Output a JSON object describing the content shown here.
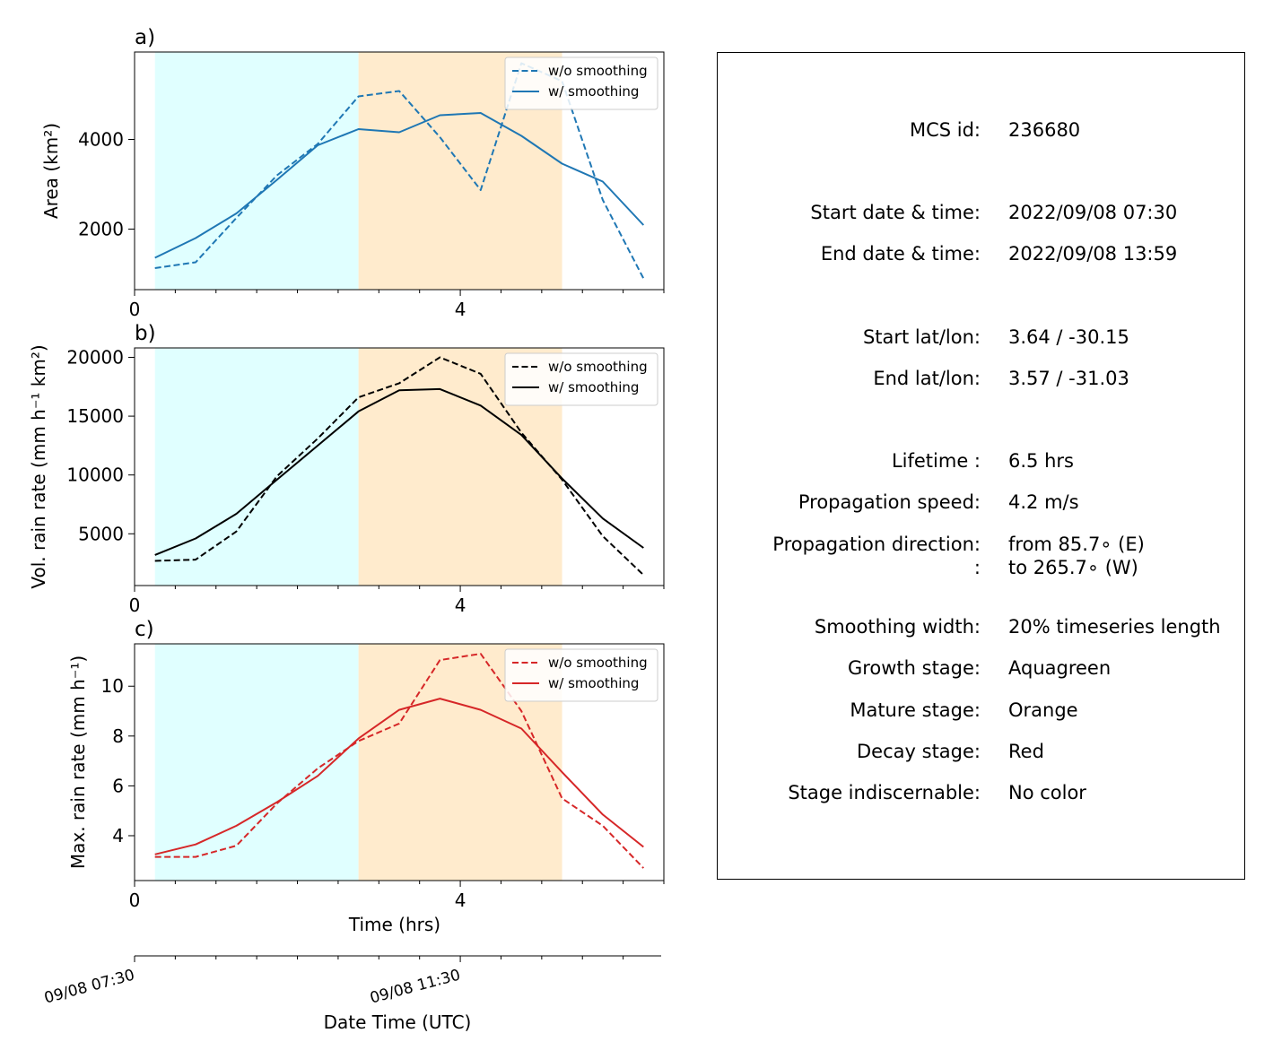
{
  "colors": {
    "growth": "#e0ffff",
    "mature": "#ffebcd",
    "blue": "#1f77b4",
    "black": "#000000",
    "red": "#d62728"
  },
  "stages": {
    "growth": [
      0.25,
      2.75
    ],
    "mature": [
      2.75,
      5.25
    ]
  },
  "chart_data": [
    {
      "type": "line",
      "panel_label": "a)",
      "ylabel": "Area  (km²)",
      "xlabel": "",
      "xlim": [
        0,
        6.5
      ],
      "ylim": [
        650,
        5950
      ],
      "x_ticks": [
        0,
        4
      ],
      "y_ticks": [
        2000,
        4000
      ],
      "legend": "top-right",
      "x": [
        0.25,
        0.75,
        1.25,
        1.75,
        2.25,
        2.75,
        3.25,
        3.75,
        4.25,
        4.75,
        5.25,
        5.75,
        6.25
      ],
      "series": [
        {
          "name": "w/o smoothing",
          "style": "dashed",
          "color": "#1f77b4",
          "values": [
            1130,
            1260,
            2250,
            3200,
            3900,
            4960,
            5080,
            4050,
            2870,
            5700,
            5300,
            2650,
            900
          ]
        },
        {
          "name": "w/ smoothing",
          "style": "solid",
          "color": "#1f77b4",
          "values": [
            1360,
            1800,
            2350,
            3100,
            3870,
            4230,
            4160,
            4540,
            4590,
            4080,
            3460,
            3060,
            2090
          ]
        }
      ]
    },
    {
      "type": "line",
      "panel_label": "b)",
      "ylabel": "Vol. rain rate (mm h⁻¹ km²)",
      "xlabel": "",
      "xlim": [
        0,
        6.5
      ],
      "ylim": [
        600,
        20800
      ],
      "x_ticks": [
        0,
        4
      ],
      "y_ticks": [
        5000,
        10000,
        15000,
        20000
      ],
      "legend": "top-right",
      "x": [
        0.25,
        0.75,
        1.25,
        1.75,
        2.25,
        2.75,
        3.25,
        3.75,
        4.25,
        4.75,
        5.25,
        5.75,
        6.25
      ],
      "series": [
        {
          "name": "w/o smoothing",
          "style": "dashed",
          "color": "#000000",
          "values": [
            2700,
            2800,
            5200,
            9900,
            13100,
            16600,
            17800,
            20000,
            18600,
            13600,
            9600,
            4800,
            1500
          ]
        },
        {
          "name": "w/ smoothing",
          "style": "solid",
          "color": "#000000",
          "values": [
            3200,
            4600,
            6700,
            9600,
            12500,
            15400,
            17200,
            17300,
            15900,
            13400,
            9700,
            6300,
            3800
          ]
        }
      ]
    },
    {
      "type": "line",
      "panel_label": "c)",
      "ylabel": "Max. rain rate  (mm h⁻¹)",
      "xlabel": "Time (hrs)",
      "xlim": [
        0,
        6.5
      ],
      "ylim": [
        2.2,
        11.7
      ],
      "x_ticks": [
        0,
        4
      ],
      "y_ticks": [
        4,
        6,
        8,
        10
      ],
      "legend": "top-right",
      "x": [
        0.25,
        0.75,
        1.25,
        1.75,
        2.25,
        2.75,
        3.25,
        3.75,
        4.25,
        4.75,
        5.25,
        5.75,
        6.25
      ],
      "series": [
        {
          "name": "w/o smoothing",
          "style": "dashed",
          "color": "#d62728",
          "values": [
            3.15,
            3.15,
            3.6,
            5.3,
            6.7,
            7.8,
            8.5,
            11.05,
            11.3,
            9.0,
            5.5,
            4.4,
            2.7
          ]
        },
        {
          "name": "w/ smoothing",
          "style": "solid",
          "color": "#d62728",
          "values": [
            3.25,
            3.65,
            4.4,
            5.35,
            6.4,
            7.9,
            9.05,
            9.5,
            9.05,
            8.3,
            6.55,
            4.85,
            3.55
          ]
        }
      ]
    }
  ],
  "date_axis": {
    "xlabel": "Date Time (UTC)",
    "tick_labels": [
      "09/08 07:30",
      "09/08 11:30"
    ],
    "tick_hours": [
      0,
      4
    ]
  },
  "info": [
    {
      "label": "MCS id:",
      "value": "236680"
    },
    {
      "label": "Start date & time:",
      "value": "2022/09/08 07:30"
    },
    {
      "label": "End date & time:",
      "value": "2022/09/08 13:59"
    },
    {
      "label": "Start lat/lon:",
      "value": "3.64 / -30.15"
    },
    {
      "label": "End lat/lon:",
      "value": "3.57 / -31.03"
    },
    {
      "label": "Lifetime :",
      "value": "6.5 hrs"
    },
    {
      "label": "Propagation speed:",
      "value": "4.2 m/s"
    },
    {
      "label": "Propagation direction:",
      "value": "from  85.7∘ (E)"
    },
    {
      "label": ":",
      "value": "to   265.7∘ (W)"
    },
    {
      "label": "Smoothing width:",
      "value": "20% timeseries length"
    },
    {
      "label": "Growth stage:",
      "value": "Aquagreen"
    },
    {
      "label": "Mature stage:",
      "value": "Orange"
    },
    {
      "label": "Decay stage:",
      "value": "Red"
    },
    {
      "label": "Stage indiscernable:",
      "value": "No color"
    }
  ]
}
